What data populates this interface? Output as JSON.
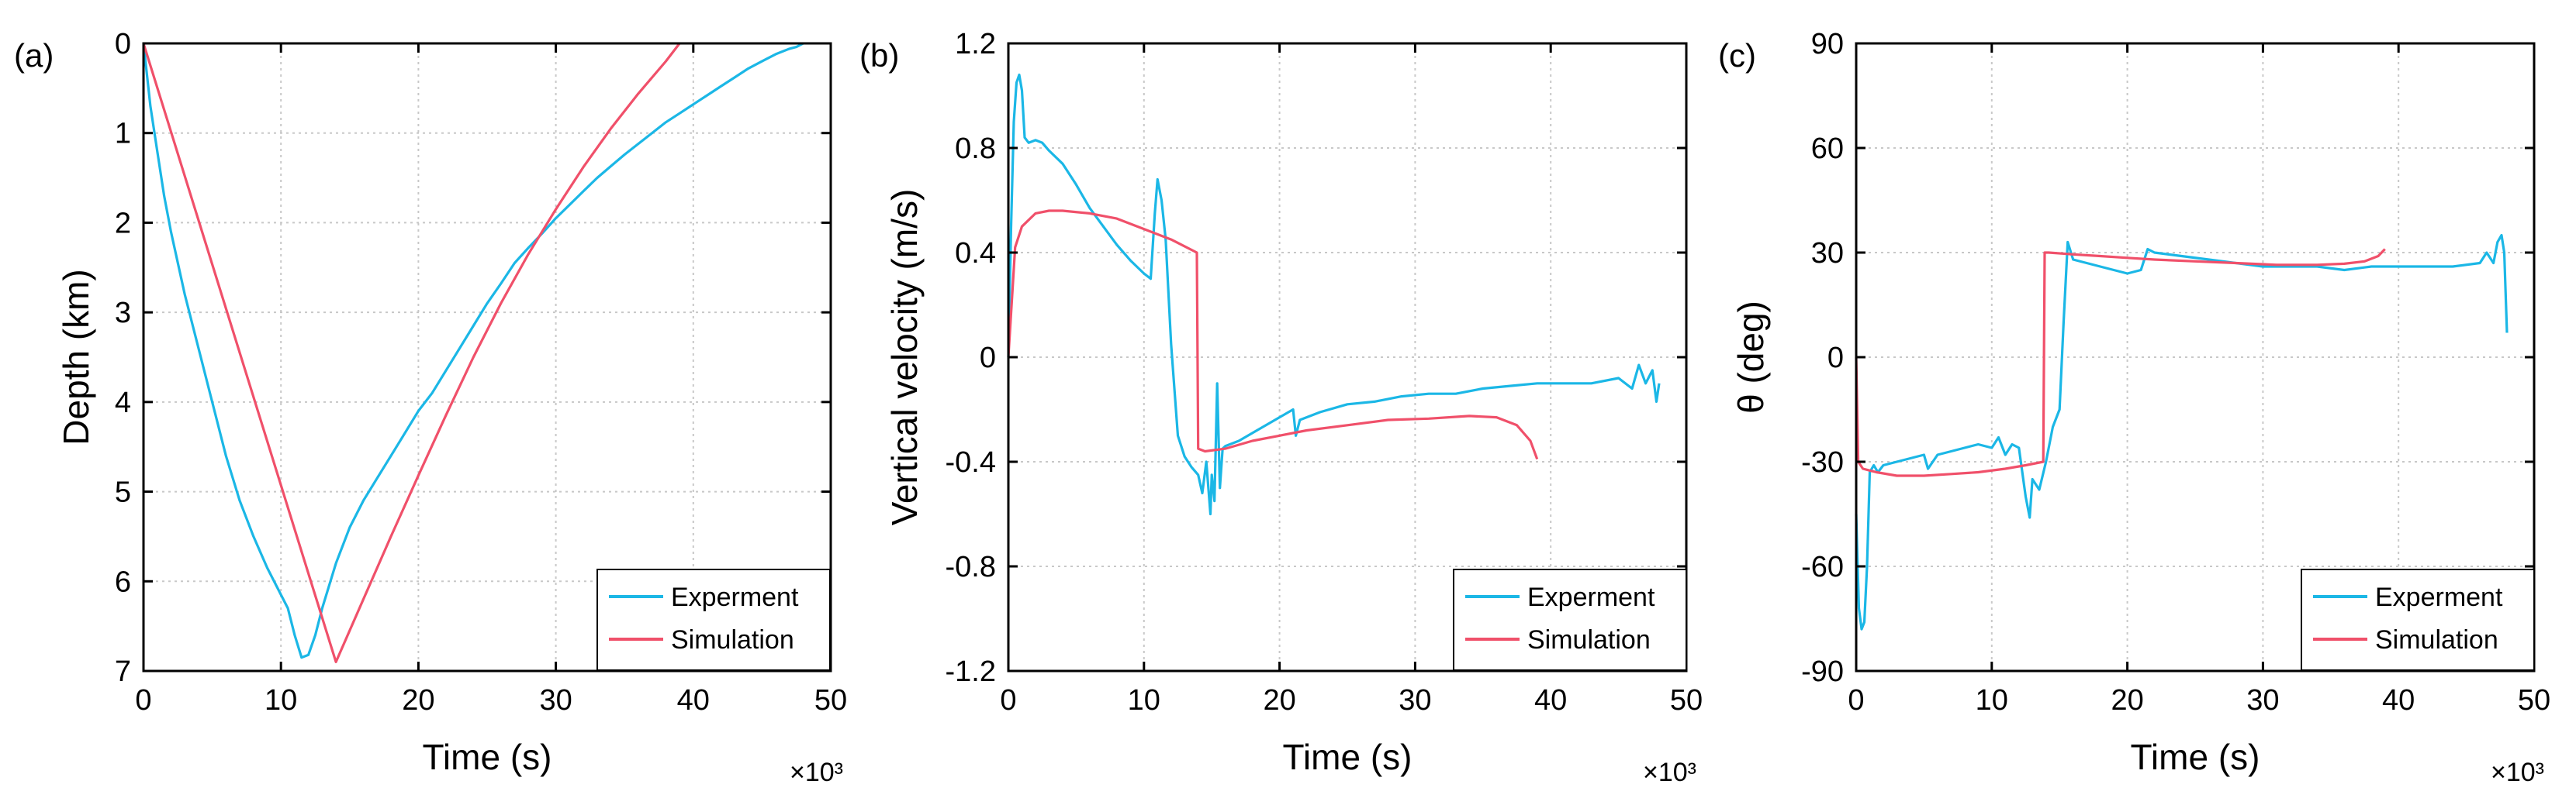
{
  "figure": {
    "panels": [
      "(a)",
      "(b)",
      "(c)"
    ],
    "x_multiplier_label": "×10³"
  },
  "colors": {
    "experiment": "#1BB7E6",
    "simulation": "#F0506A",
    "grid": "#C8C8C8",
    "axis": "#000000"
  },
  "chart_data": [
    {
      "type": "line",
      "panel_label": "(a)",
      "title": "",
      "xlabel": "Time (s)",
      "ylabel": "Depth (km)",
      "x_multiplier": "×10³",
      "xlim": [
        0,
        50
      ],
      "ylim": [
        0,
        7
      ],
      "y_inverted": true,
      "x_ticks": [
        0,
        10,
        20,
        30,
        40,
        50
      ],
      "y_ticks": [
        0,
        1,
        2,
        3,
        4,
        5,
        6,
        7
      ],
      "grid": true,
      "legend": {
        "position": "bottom-right",
        "entries": [
          "Experment",
          "Simulation"
        ]
      },
      "series": [
        {
          "name": "Experment",
          "x": [
            0,
            0.5,
            1,
            1.5,
            2,
            3,
            4,
            5,
            6,
            7,
            8,
            9,
            10,
            10.5,
            11,
            11.5,
            12,
            12.5,
            13,
            14,
            15,
            16,
            17,
            18,
            19,
            20,
            21,
            22,
            23,
            24,
            25,
            26,
            27,
            28,
            29,
            30,
            31,
            32,
            33,
            34,
            35,
            36,
            37,
            38,
            39,
            40,
            41,
            42,
            43,
            44,
            45,
            46,
            47,
            47.5,
            48
          ],
          "y": [
            0,
            0.7,
            1.2,
            1.7,
            2.1,
            2.8,
            3.4,
            4.0,
            4.6,
            5.1,
            5.5,
            5.85,
            6.15,
            6.3,
            6.6,
            6.85,
            6.82,
            6.6,
            6.3,
            5.8,
            5.4,
            5.1,
            4.85,
            4.6,
            4.35,
            4.1,
            3.9,
            3.65,
            3.4,
            3.15,
            2.9,
            2.68,
            2.45,
            2.28,
            2.12,
            1.95,
            1.8,
            1.65,
            1.5,
            1.37,
            1.24,
            1.12,
            1.0,
            0.88,
            0.78,
            0.68,
            0.58,
            0.48,
            0.38,
            0.28,
            0.2,
            0.12,
            0.06,
            0.04,
            0.0
          ]
        },
        {
          "name": "Simulation",
          "x": [
            0,
            14,
            16,
            18,
            20,
            22,
            24,
            26,
            28,
            30,
            32,
            34,
            36,
            38,
            39
          ],
          "y": [
            0,
            6.9,
            6.2,
            5.5,
            4.82,
            4.15,
            3.5,
            2.9,
            2.35,
            1.85,
            1.38,
            0.95,
            0.56,
            0.2,
            0.0
          ]
        }
      ]
    },
    {
      "type": "line",
      "panel_label": "(b)",
      "title": "",
      "xlabel": "Time (s)",
      "ylabel": "Vertical velocity (m/s)",
      "x_multiplier": "×10³",
      "xlim": [
        0,
        50
      ],
      "ylim": [
        -1.2,
        1.2
      ],
      "y_inverted": false,
      "x_ticks": [
        0,
        10,
        20,
        30,
        40,
        50
      ],
      "y_ticks": [
        -1.2,
        -0.8,
        -0.4,
        0,
        0.4,
        0.8,
        1.2
      ],
      "grid": true,
      "legend": {
        "position": "bottom-right",
        "entries": [
          "Experment",
          "Simulation"
        ]
      },
      "series": [
        {
          "name": "Experment",
          "x": [
            0,
            0.2,
            0.4,
            0.6,
            0.8,
            1.0,
            1.2,
            1.5,
            2.0,
            2.5,
            3.0,
            4.0,
            5.0,
            6.0,
            7.0,
            8.0,
            9.0,
            10.0,
            10.5,
            10.8,
            11.0,
            11.3,
            11.6,
            12.0,
            12.5,
            13.0,
            13.5,
            14.0,
            14.3,
            14.6,
            14.9,
            15.0,
            15.2,
            15.4,
            15.6,
            15.8,
            16.0,
            17.0,
            18.0,
            19.0,
            20.0,
            21.0,
            21.2,
            21.5,
            23.0,
            25.0,
            27.0,
            29.0,
            31.0,
            33.0,
            35.0,
            37.0,
            39.0,
            41.0,
            43.0,
            45.0,
            46.0,
            46.5,
            47.0,
            47.5,
            47.8,
            48.0
          ],
          "y": [
            0.0,
            0.5,
            0.9,
            1.05,
            1.08,
            1.02,
            0.84,
            0.82,
            0.83,
            0.82,
            0.79,
            0.74,
            0.66,
            0.57,
            0.5,
            0.43,
            0.37,
            0.32,
            0.3,
            0.55,
            0.68,
            0.6,
            0.45,
            0.05,
            -0.3,
            -0.38,
            -0.42,
            -0.45,
            -0.52,
            -0.4,
            -0.6,
            -0.45,
            -0.55,
            -0.1,
            -0.5,
            -0.35,
            -0.34,
            -0.32,
            -0.29,
            -0.26,
            -0.23,
            -0.2,
            -0.3,
            -0.24,
            -0.21,
            -0.18,
            -0.17,
            -0.15,
            -0.14,
            -0.14,
            -0.12,
            -0.11,
            -0.1,
            -0.1,
            -0.1,
            -0.08,
            -0.12,
            -0.03,
            -0.1,
            -0.05,
            -0.17,
            -0.1
          ]
        },
        {
          "name": "Simulation",
          "x": [
            0,
            0.5,
            1,
            2,
            3,
            4,
            6,
            8,
            10,
            12,
            13.9,
            14.0,
            14.5,
            16,
            18,
            20,
            22,
            25,
            28,
            31,
            34,
            36,
            37.5,
            38.5,
            39
          ],
          "y": [
            0.0,
            0.42,
            0.5,
            0.55,
            0.56,
            0.56,
            0.55,
            0.53,
            0.49,
            0.45,
            0.4,
            -0.35,
            -0.36,
            -0.35,
            -0.32,
            -0.3,
            -0.28,
            -0.26,
            -0.24,
            -0.235,
            -0.225,
            -0.23,
            -0.26,
            -0.32,
            -0.39
          ]
        }
      ]
    },
    {
      "type": "line",
      "panel_label": "(c)",
      "title": "",
      "xlabel": "Time (s)",
      "ylabel": "θ (deg)",
      "x_multiplier": "×10³",
      "xlim": [
        0,
        50
      ],
      "ylim": [
        -90,
        90
      ],
      "y_inverted": false,
      "x_ticks": [
        0,
        10,
        20,
        30,
        40,
        50
      ],
      "y_ticks": [
        -90,
        -60,
        -30,
        0,
        30,
        60,
        90
      ],
      "grid": true,
      "legend": {
        "position": "bottom-right",
        "entries": [
          "Experment",
          "Simulation"
        ]
      },
      "series": [
        {
          "name": "Experment",
          "x": [
            0,
            0.2,
            0.4,
            0.6,
            0.8,
            1.0,
            1.3,
            1.6,
            2.0,
            3.0,
            4.0,
            5.0,
            5.3,
            6.0,
            7.0,
            8.0,
            9.0,
            10.0,
            10.5,
            11.0,
            11.5,
            12.0,
            12.5,
            12.8,
            13.0,
            13.5,
            14.0,
            14.5,
            15.0,
            15.3,
            15.6,
            16.0,
            17.0,
            18.0,
            19.0,
            20.0,
            21.0,
            21.5,
            22.0,
            24.0,
            26.0,
            28.0,
            30.0,
            32.0,
            34.0,
            36.0,
            38.0,
            40.0,
            42.0,
            44.0,
            46.0,
            46.5,
            47.0,
            47.3,
            47.6,
            47.8,
            48.0
          ],
          "y": [
            -45,
            -72,
            -78,
            -76,
            -60,
            -33,
            -31,
            -33,
            -31,
            -30,
            -29,
            -28,
            -32,
            -28,
            -27,
            -26,
            -25,
            -26,
            -23,
            -28,
            -25,
            -26,
            -40,
            -46,
            -35,
            -38,
            -30,
            -20,
            -15,
            10,
            33,
            28,
            27,
            26,
            25,
            24,
            25,
            31,
            30,
            29,
            28,
            27,
            26,
            26,
            26,
            25,
            26,
            26,
            26,
            26,
            27,
            30,
            27,
            33,
            35,
            30,
            7
          ]
        },
        {
          "name": "Simulation",
          "x": [
            0,
            0.15,
            0.5,
            1.5,
            3,
            5,
            7,
            9,
            11,
            12.5,
            13.8,
            13.9,
            14.2,
            16,
            18,
            20,
            22,
            25,
            28,
            31,
            34,
            36,
            37.5,
            38.5,
            39
          ],
          "y": [
            0,
            -30,
            -32,
            -33,
            -34,
            -34,
            -33.5,
            -33,
            -32,
            -31,
            -30,
            30,
            30,
            29.5,
            29,
            28.5,
            28,
            27.5,
            27,
            26.5,
            26.5,
            26.8,
            27.5,
            29,
            31
          ]
        }
      ]
    }
  ]
}
